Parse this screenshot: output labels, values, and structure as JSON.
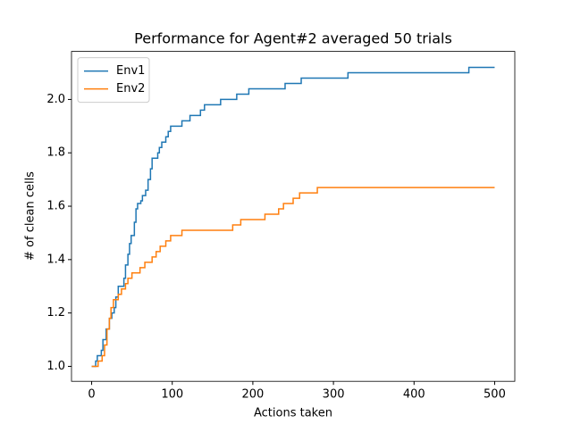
{
  "chart_data": {
    "type": "line",
    "title": "Performance for Agent#2 averaged 50 trials",
    "xlabel": "Actions taken",
    "ylabel": "# of clean cells",
    "drawstyle": "steps-post",
    "legend": "upper left",
    "xlim": [
      -25,
      525
    ],
    "xticks": [
      0,
      100,
      200,
      300,
      400,
      500
    ],
    "ylim": [
      0.944,
      2.18
    ],
    "yticks": [
      {
        "value": 1.0,
        "label": "1.0"
      },
      1.2,
      1.4,
      1.6,
      1.8,
      {
        "value": 2.0,
        "label": "2.0"
      }
    ],
    "series": [
      {
        "name": "Env1",
        "color": "#1f77b4",
        "x": [
          0,
          5,
          7,
          12,
          14,
          18,
          22,
          25,
          28,
          30,
          33,
          40,
          42,
          45,
          47,
          49,
          53,
          55,
          57,
          61,
          63,
          67,
          70,
          73,
          75,
          82,
          84,
          87,
          92,
          95,
          98,
          112,
          122,
          135,
          140,
          160,
          180,
          195,
          240,
          260,
          318,
          468,
          500
        ],
        "values": [
          1.0,
          1.02,
          1.04,
          1.06,
          1.1,
          1.14,
          1.18,
          1.2,
          1.22,
          1.26,
          1.3,
          1.33,
          1.38,
          1.42,
          1.46,
          1.49,
          1.54,
          1.59,
          1.61,
          1.62,
          1.64,
          1.66,
          1.7,
          1.74,
          1.78,
          1.8,
          1.82,
          1.84,
          1.86,
          1.88,
          1.9,
          1.92,
          1.94,
          1.96,
          1.98,
          2.0,
          2.02,
          2.04,
          2.06,
          2.08,
          2.1,
          2.12,
          2.12
        ]
      },
      {
        "name": "Env2",
        "color": "#ff7f0e",
        "x": [
          0,
          8,
          13,
          16,
          19,
          22,
          24,
          27,
          33,
          37,
          42,
          45,
          50,
          60,
          66,
          75,
          80,
          85,
          92,
          98,
          112,
          175,
          185,
          215,
          232,
          238,
          250,
          258,
          280,
          500
        ],
        "values": [
          1.0,
          1.02,
          1.04,
          1.08,
          1.14,
          1.18,
          1.22,
          1.25,
          1.27,
          1.29,
          1.31,
          1.33,
          1.35,
          1.37,
          1.39,
          1.41,
          1.43,
          1.45,
          1.47,
          1.49,
          1.51,
          1.53,
          1.55,
          1.57,
          1.59,
          1.61,
          1.63,
          1.65,
          1.67,
          1.67
        ]
      }
    ]
  }
}
